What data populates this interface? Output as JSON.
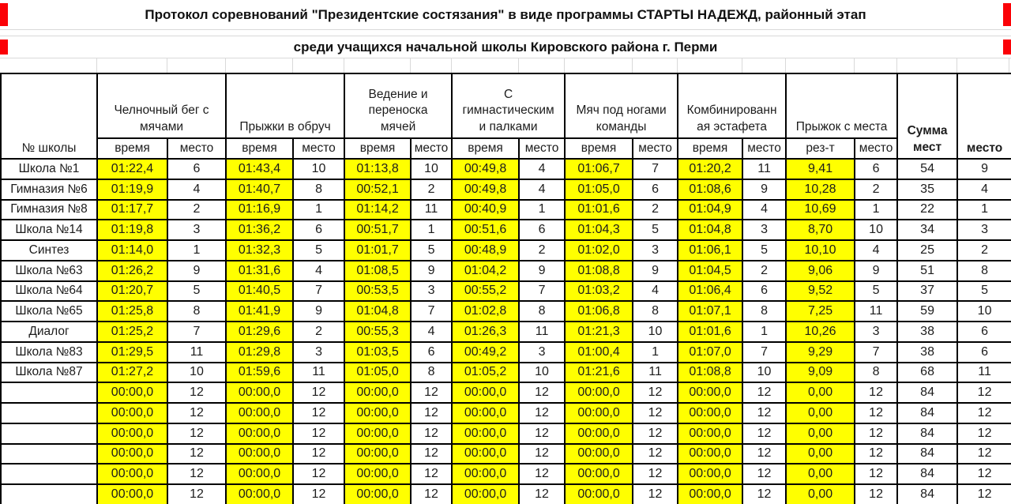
{
  "titles": {
    "line1": "Протокол соревнований \"Президентские состязания\" в виде программы СТАРТЫ НАДЕЖД, районный этап",
    "line2": "среди учащихся начальной школы Кировского района г. Перми"
  },
  "colors": {
    "highlight_yellow": "#ffff00",
    "marker_red": "#fb0207",
    "border_black": "#000000",
    "faint_grid": "#d9d9d9"
  },
  "table": {
    "school_header": "№ школы",
    "sum_header": "Сумма\nмест",
    "place_header": "место",
    "events": [
      {
        "label": "Челночный бег с\nмячами",
        "sub": [
          "время",
          "место"
        ]
      },
      {
        "label": "Прыжки в обруч",
        "sub": [
          "время",
          "место"
        ]
      },
      {
        "label": "Ведение и\nпереноска\nмячей",
        "sub": [
          "время",
          "место"
        ]
      },
      {
        "label": "С\nгимнастическим\nи палками",
        "sub": [
          "время",
          "место"
        ]
      },
      {
        "label": "Мяч под ногами\nкоманды",
        "sub": [
          "время",
          "место"
        ]
      },
      {
        "label": "Комбинированн\nая эстафета",
        "sub": [
          "время",
          "место"
        ]
      },
      {
        "label": "Прыжок с места",
        "sub": [
          "рез-т",
          "место"
        ]
      }
    ],
    "rows": [
      {
        "school": "Школа №1",
        "results": [
          [
            "01:22,4",
            "6"
          ],
          [
            "01:43,4",
            "10"
          ],
          [
            "01:13,8",
            "10"
          ],
          [
            "00:49,8",
            "4"
          ],
          [
            "01:06,7",
            "7"
          ],
          [
            "01:20,2",
            "11"
          ],
          [
            "9,41",
            "6"
          ]
        ],
        "sum": "54",
        "place": "9"
      },
      {
        "school": "Гимназия №6",
        "results": [
          [
            "01:19,9",
            "4"
          ],
          [
            "01:40,7",
            "8"
          ],
          [
            "00:52,1",
            "2"
          ],
          [
            "00:49,8",
            "4"
          ],
          [
            "01:05,0",
            "6"
          ],
          [
            "01:08,6",
            "9"
          ],
          [
            "10,28",
            "2"
          ]
        ],
        "sum": "35",
        "place": "4"
      },
      {
        "school": "Гимназия №8",
        "results": [
          [
            "01:17,7",
            "2"
          ],
          [
            "01:16,9",
            "1"
          ],
          [
            "01:14,2",
            "11"
          ],
          [
            "00:40,9",
            "1"
          ],
          [
            "01:01,6",
            "2"
          ],
          [
            "01:04,9",
            "4"
          ],
          [
            "10,69",
            "1"
          ]
        ],
        "sum": "22",
        "place": "1"
      },
      {
        "school": "Школа №14",
        "results": [
          [
            "01:19,8",
            "3"
          ],
          [
            "01:36,2",
            "6"
          ],
          [
            "00:51,7",
            "1"
          ],
          [
            "00:51,6",
            "6"
          ],
          [
            "01:04,3",
            "5"
          ],
          [
            "01:04,8",
            "3"
          ],
          [
            "8,70",
            "10"
          ]
        ],
        "sum": "34",
        "place": "3"
      },
      {
        "school": "Синтез",
        "results": [
          [
            "01:14,0",
            "1"
          ],
          [
            "01:32,3",
            "5"
          ],
          [
            "01:01,7",
            "5"
          ],
          [
            "00:48,9",
            "2"
          ],
          [
            "01:02,0",
            "3"
          ],
          [
            "01:06,1",
            "5"
          ],
          [
            "10,10",
            "4"
          ]
        ],
        "sum": "25",
        "place": "2"
      },
      {
        "school": "Школа №63",
        "results": [
          [
            "01:26,2",
            "9"
          ],
          [
            "01:31,6",
            "4"
          ],
          [
            "01:08,5",
            "9"
          ],
          [
            "01:04,2",
            "9"
          ],
          [
            "01:08,8",
            "9"
          ],
          [
            "01:04,5",
            "2"
          ],
          [
            "9,06",
            "9"
          ]
        ],
        "sum": "51",
        "place": "8"
      },
      {
        "school": "Школа №64",
        "results": [
          [
            "01:20,7",
            "5"
          ],
          [
            "01:40,5",
            "7"
          ],
          [
            "00:53,5",
            "3"
          ],
          [
            "00:55,2",
            "7"
          ],
          [
            "01:03,2",
            "4"
          ],
          [
            "01:06,4",
            "6"
          ],
          [
            "9,52",
            "5"
          ]
        ],
        "sum": "37",
        "place": "5"
      },
      {
        "school": "Школа №65",
        "results": [
          [
            "01:25,8",
            "8"
          ],
          [
            "01:41,9",
            "9"
          ],
          [
            "01:04,8",
            "7"
          ],
          [
            "01:02,8",
            "8"
          ],
          [
            "01:06,8",
            "8"
          ],
          [
            "01:07,1",
            "8"
          ],
          [
            "7,25",
            "11"
          ]
        ],
        "sum": "59",
        "place": "10"
      },
      {
        "school": "Диалог",
        "results": [
          [
            "01:25,2",
            "7"
          ],
          [
            "01:29,6",
            "2"
          ],
          [
            "00:55,3",
            "4"
          ],
          [
            "01:26,3",
            "11"
          ],
          [
            "01:21,3",
            "10"
          ],
          [
            "01:01,6",
            "1"
          ],
          [
            "10,26",
            "3"
          ]
        ],
        "sum": "38",
        "place": "6"
      },
      {
        "school": "Школа №83",
        "results": [
          [
            "01:29,5",
            "11"
          ],
          [
            "01:29,8",
            "3"
          ],
          [
            "01:03,5",
            "6"
          ],
          [
            "00:49,2",
            "3"
          ],
          [
            "01:00,4",
            "1"
          ],
          [
            "01:07,0",
            "7"
          ],
          [
            "9,29",
            "7"
          ]
        ],
        "sum": "38",
        "place": "6"
      },
      {
        "school": "Школа №87",
        "results": [
          [
            "01:27,2",
            "10"
          ],
          [
            "01:59,6",
            "11"
          ],
          [
            "01:05,0",
            "8"
          ],
          [
            "01:05,2",
            "10"
          ],
          [
            "01:21,6",
            "11"
          ],
          [
            "01:08,8",
            "10"
          ],
          [
            "9,09",
            "8"
          ]
        ],
        "sum": "68",
        "place": "11"
      },
      {
        "school": "",
        "results": [
          [
            "00:00,0",
            "12"
          ],
          [
            "00:00,0",
            "12"
          ],
          [
            "00:00,0",
            "12"
          ],
          [
            "00:00,0",
            "12"
          ],
          [
            "00:00,0",
            "12"
          ],
          [
            "00:00,0",
            "12"
          ],
          [
            "0,00",
            "12"
          ]
        ],
        "sum": "84",
        "place": "12"
      },
      {
        "school": "",
        "results": [
          [
            "00:00,0",
            "12"
          ],
          [
            "00:00,0",
            "12"
          ],
          [
            "00:00,0",
            "12"
          ],
          [
            "00:00,0",
            "12"
          ],
          [
            "00:00,0",
            "12"
          ],
          [
            "00:00,0",
            "12"
          ],
          [
            "0,00",
            "12"
          ]
        ],
        "sum": "84",
        "place": "12"
      },
      {
        "school": "",
        "results": [
          [
            "00:00,0",
            "12"
          ],
          [
            "00:00,0",
            "12"
          ],
          [
            "00:00,0",
            "12"
          ],
          [
            "00:00,0",
            "12"
          ],
          [
            "00:00,0",
            "12"
          ],
          [
            "00:00,0",
            "12"
          ],
          [
            "0,00",
            "12"
          ]
        ],
        "sum": "84",
        "place": "12"
      },
      {
        "school": "",
        "results": [
          [
            "00:00,0",
            "12"
          ],
          [
            "00:00,0",
            "12"
          ],
          [
            "00:00,0",
            "12"
          ],
          [
            "00:00,0",
            "12"
          ],
          [
            "00:00,0",
            "12"
          ],
          [
            "00:00,0",
            "12"
          ],
          [
            "0,00",
            "12"
          ]
        ],
        "sum": "84",
        "place": "12"
      },
      {
        "school": "",
        "results": [
          [
            "00:00,0",
            "12"
          ],
          [
            "00:00,0",
            "12"
          ],
          [
            "00:00,0",
            "12"
          ],
          [
            "00:00,0",
            "12"
          ],
          [
            "00:00,0",
            "12"
          ],
          [
            "00:00,0",
            "12"
          ],
          [
            "0,00",
            "12"
          ]
        ],
        "sum": "84",
        "place": "12"
      },
      {
        "school": "",
        "results": [
          [
            "00:00,0",
            "12"
          ],
          [
            "00:00,0",
            "12"
          ],
          [
            "00:00,0",
            "12"
          ],
          [
            "00:00,0",
            "12"
          ],
          [
            "00:00,0",
            "12"
          ],
          [
            "00:00,0",
            "12"
          ],
          [
            "0,00",
            "12"
          ]
        ],
        "sum": "84",
        "place": "12"
      }
    ]
  }
}
